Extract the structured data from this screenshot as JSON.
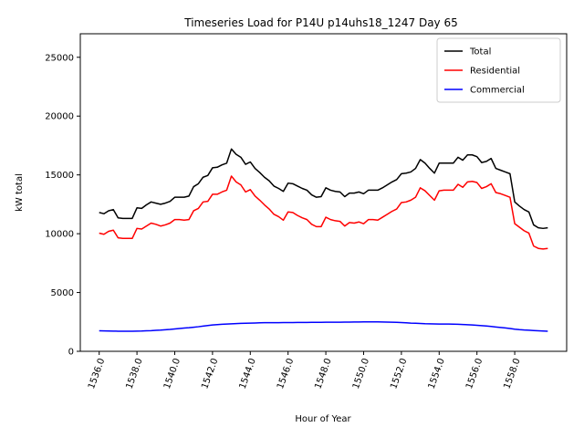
{
  "chart_data": {
    "type": "line",
    "title": "Timeseries Load for P14U p14uhs18_1247  Day 65",
    "xlabel": "Hour of Year",
    "ylabel": "kW total",
    "xlim": [
      1535.0,
      1560.75
    ],
    "ylim": [
      0,
      27000
    ],
    "xticks": [
      1536,
      1538,
      1540,
      1542,
      1544,
      1546,
      1548,
      1550,
      1552,
      1554,
      1556,
      1558
    ],
    "xtick_labels": [
      "1536.0",
      "1538.0",
      "1540.0",
      "1542.0",
      "1544.0",
      "1546.0",
      "1548.0",
      "1550.0",
      "1552.0",
      "1554.0",
      "1556.0",
      "1558.0"
    ],
    "yticks": [
      0,
      5000,
      10000,
      15000,
      20000,
      25000
    ],
    "ytick_labels": [
      "0",
      "5000",
      "10000",
      "15000",
      "20000",
      "25000"
    ],
    "legend_position": "top-right",
    "series": [
      {
        "name": "Total",
        "color": "#000000",
        "x_start": 1536.0,
        "x_step": 0.25,
        "values": [
          11800,
          11700,
          11950,
          12050,
          11350,
          11300,
          11300,
          11300,
          12200,
          12150,
          12450,
          12700,
          12600,
          12500,
          12600,
          12750,
          13100,
          13100,
          13100,
          13200,
          14000,
          14250,
          14800,
          14950,
          15600,
          15650,
          15850,
          16000,
          17200,
          16750,
          16500,
          15900,
          16100,
          15550,
          15200,
          14800,
          14500,
          14050,
          13850,
          13600,
          14300,
          14250,
          14050,
          13850,
          13700,
          13300,
          13100,
          13150,
          13900,
          13700,
          13600,
          13550,
          13150,
          13450,
          13450,
          13550,
          13400,
          13700,
          13700,
          13700,
          13900,
          14150,
          14400,
          14600,
          15100,
          15150,
          15250,
          15550,
          16300,
          16000,
          15550,
          15150,
          16000,
          16000,
          16000,
          16000,
          16500,
          16250,
          16700,
          16700,
          16550,
          16050,
          16150,
          16400,
          15550,
          15400,
          15250,
          15100,
          12700,
          12350,
          12050,
          11850,
          10750,
          10500,
          10450,
          10500
        ]
      },
      {
        "name": "Residential",
        "color": "#ff0000",
        "x_start": 1536.0,
        "x_step": 0.25,
        "values": [
          10050,
          9950,
          10200,
          10300,
          9650,
          9600,
          9600,
          9600,
          10450,
          10400,
          10650,
          10900,
          10800,
          10650,
          10750,
          10900,
          11200,
          11200,
          11150,
          11200,
          11950,
          12150,
          12700,
          12750,
          13350,
          13350,
          13550,
          13700,
          14900,
          14400,
          14150,
          13550,
          13750,
          13200,
          12850,
          12450,
          12100,
          11650,
          11450,
          11150,
          11850,
          11800,
          11550,
          11350,
          11200,
          10800,
          10600,
          10600,
          11400,
          11200,
          11100,
          11050,
          10650,
          10950,
          10900,
          11000,
          10850,
          11200,
          11200,
          11150,
          11400,
          11650,
          11900,
          12100,
          12650,
          12700,
          12850,
          13100,
          13900,
          13650,
          13250,
          12850,
          13650,
          13700,
          13700,
          13700,
          14200,
          13950,
          14400,
          14450,
          14350,
          13850,
          14000,
          14250,
          13500,
          13400,
          13250,
          13100,
          10850,
          10550,
          10250,
          10050,
          8950,
          8750,
          8700,
          8750
        ]
      },
      {
        "name": "Commercial",
        "color": "#0000ff",
        "x_start": 1536.0,
        "x_step": 0.25,
        "values": [
          1750,
          1740,
          1730,
          1720,
          1710,
          1710,
          1710,
          1710,
          1720,
          1730,
          1750,
          1760,
          1780,
          1800,
          1830,
          1860,
          1900,
          1940,
          1980,
          2010,
          2050,
          2090,
          2140,
          2190,
          2240,
          2270,
          2300,
          2320,
          2340,
          2360,
          2380,
          2390,
          2400,
          2410,
          2420,
          2430,
          2430,
          2430,
          2430,
          2440,
          2440,
          2440,
          2450,
          2450,
          2450,
          2460,
          2460,
          2460,
          2470,
          2470,
          2470,
          2470,
          2480,
          2480,
          2490,
          2490,
          2500,
          2500,
          2500,
          2500,
          2490,
          2480,
          2470,
          2460,
          2440,
          2420,
          2400,
          2390,
          2370,
          2350,
          2340,
          2330,
          2320,
          2320,
          2320,
          2310,
          2300,
          2280,
          2260,
          2240,
          2210,
          2180,
          2150,
          2110,
          2070,
          2030,
          1990,
          1940,
          1880,
          1840,
          1810,
          1790,
          1770,
          1750,
          1730,
          1710
        ]
      }
    ]
  }
}
